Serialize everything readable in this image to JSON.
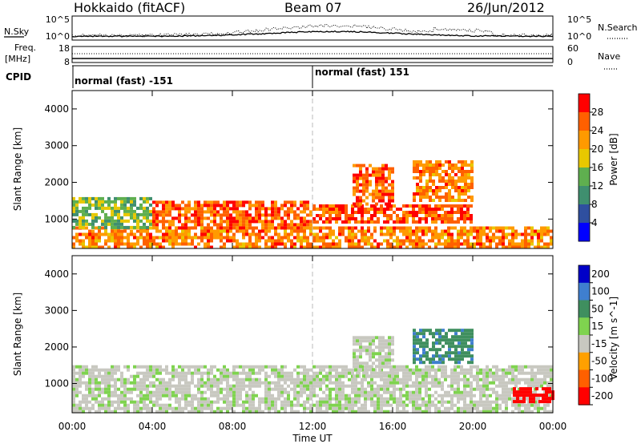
{
  "header": {
    "station": "Hokkaido (fitACF)",
    "beam": "Beam 07",
    "date": "26/Jun/2012"
  },
  "top_panels": {
    "nsky_label": "N.Sky",
    "nsearch_label": "N.Search",
    "nsky_ticks": [
      "10^5",
      "10^0"
    ],
    "nsearch_ticks": [
      "10^5",
      "10^0"
    ],
    "freq_label_line1": "Freq.",
    "freq_label_line2": "[MHz]",
    "freq_ticks": [
      "18",
      "8"
    ],
    "nave_label": "Nave",
    "nave_ticks": [
      "60",
      "0"
    ],
    "cpid_label": "CPID",
    "cpid_segments": [
      "normal (fast) -151",
      "normal (fast) 151"
    ]
  },
  "x_axis": {
    "label": "Time UT",
    "ticks": [
      "00:00",
      "04:00",
      "08:00",
      "12:00",
      "16:00",
      "20:00",
      "00:00"
    ]
  },
  "colors": {
    "power_scale": [
      "#0000ff",
      "#2f4f9f",
      "#3f8f6f",
      "#5faf4f",
      "#e8c800",
      "#ff9a00",
      "#ff6000",
      "#ff0000"
    ],
    "velocity_scale": [
      "#0000c8",
      "#3f7fcf",
      "#3f8f5f",
      "#7fd34f",
      "#c8c8c0",
      "#ffa000",
      "#ff6000",
      "#ff0000"
    ]
  },
  "chart_data": [
    {
      "type": "heatmap",
      "name": "power",
      "ylabel": "Slant Range [km]",
      "yticks": [
        "1000",
        "2000",
        "3000",
        "4000"
      ],
      "ylim": [
        200,
        4500
      ],
      "xlim": [
        "00:00",
        "24:00"
      ],
      "colorbar_label": "Power [dB]",
      "colorbar_ticks": [
        "4",
        "8",
        "12",
        "16",
        "20",
        "24",
        "28"
      ],
      "colorbar_range": [
        0,
        32
      ],
      "echo_bands": [
        {
          "t_start": 0,
          "t_end": 24,
          "r_start": 250,
          "r_end": 800,
          "level": 24
        },
        {
          "t_start": 0,
          "t_end": 4,
          "r_start": 800,
          "r_end": 1600,
          "level": 14
        },
        {
          "t_start": 4,
          "t_end": 12,
          "r_start": 800,
          "r_end": 1500,
          "level": 26
        },
        {
          "t_start": 12,
          "t_end": 20,
          "r_start": 900,
          "r_end": 1400,
          "level": 27
        },
        {
          "t_start": 14,
          "t_end": 16,
          "r_start": 1400,
          "r_end": 2500,
          "level": 26
        },
        {
          "t_start": 17,
          "t_end": 20,
          "r_start": 1500,
          "r_end": 2600,
          "level": 24
        }
      ]
    },
    {
      "type": "heatmap",
      "name": "velocity",
      "ylabel": "Slant Range [km]",
      "yticks": [
        "1000",
        "2000",
        "3000",
        "4000"
      ],
      "ylim": [
        200,
        4500
      ],
      "xlim": [
        "00:00",
        "24:00"
      ],
      "colorbar_label": "Velocity [m s^-1]",
      "colorbar_ticks": [
        "200",
        "100",
        "50",
        "15",
        "-15",
        "-50",
        "-100",
        "-200"
      ],
      "colorbar_range": [
        -250,
        250
      ],
      "echo_bands": [
        {
          "t_start": 0,
          "t_end": 24,
          "r_start": 250,
          "r_end": 1500,
          "level": 0
        },
        {
          "t_start": 14,
          "t_end": 16,
          "r_start": 1200,
          "r_end": 2300,
          "level": 0
        },
        {
          "t_start": 17,
          "t_end": 20,
          "r_start": 1600,
          "r_end": 2500,
          "level": 60
        },
        {
          "t_start": 22,
          "t_end": 24,
          "r_start": 500,
          "r_end": 900,
          "level": -200
        }
      ]
    }
  ]
}
